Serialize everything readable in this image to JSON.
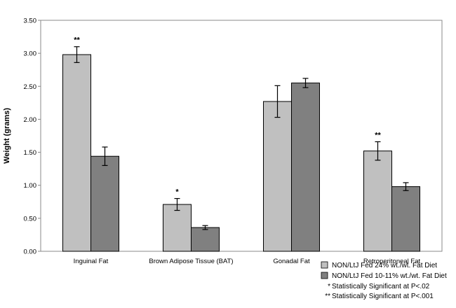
{
  "chart_data": {
    "type": "bar",
    "title": "",
    "xlabel": "",
    "ylabel": "Weight (grams)",
    "ylim": [
      0,
      3.5
    ],
    "yticks": [
      "0.00",
      "0.50",
      "1.00",
      "1.50",
      "2.00",
      "2.50",
      "3.00",
      "3.50"
    ],
    "grid": false,
    "categories": [
      "Inguinal Fat",
      "Brown Adipose Tissue (BAT)",
      "Gonadal Fat",
      "Retroperitoneal Fat"
    ],
    "series": [
      {
        "name": "NON/LtJ Fed 24% wt./wt. Fat Diet",
        "color": "#c0c0c0",
        "values": [
          2.98,
          0.71,
          2.27,
          1.52
        ],
        "errors": [
          0.12,
          0.09,
          0.24,
          0.14
        ]
      },
      {
        "name": "NON/LtJ Fed 10-11% wt./wt. Fat Diet",
        "color": "#808080",
        "values": [
          1.44,
          0.36,
          2.55,
          0.98
        ],
        "errors": [
          0.14,
          0.03,
          0.07,
          0.06
        ]
      }
    ],
    "annotations": [
      {
        "category": 0,
        "series": 0,
        "text": "**"
      },
      {
        "category": 1,
        "series": 0,
        "text": "*"
      },
      {
        "category": 3,
        "series": 0,
        "text": "**"
      }
    ],
    "legend": {
      "placement": "bottom-right",
      "notes": [
        {
          "symbol": "*",
          "text": "Statistically Significant at P<.02"
        },
        {
          "symbol": "**",
          "text": "Statistically Significant at P<.001"
        }
      ]
    }
  }
}
